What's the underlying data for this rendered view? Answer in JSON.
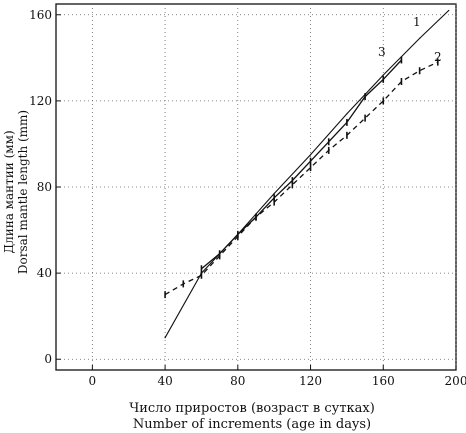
{
  "chart_data": {
    "type": "line",
    "xlabel": [
      "Число приростов (возраст в сутках)",
      "Number of increments (age in days)"
    ],
    "ylabel": [
      "Длина мантии (мм)",
      "Dorsal mantle length (mm)"
    ],
    "xlim": [
      -20,
      200
    ],
    "ylim": [
      -5,
      165
    ],
    "xticks": [
      0,
      40,
      80,
      120,
      160,
      200
    ],
    "yticks": [
      0,
      40,
      80,
      120,
      160
    ],
    "grid": true,
    "series": [
      {
        "name": "1",
        "style": "solid",
        "marker": "none",
        "x": [
          40,
          60,
          80,
          100,
          120,
          140,
          160,
          180,
          196
        ],
        "y": [
          10,
          40,
          58,
          77,
          95,
          114,
          132,
          149,
          162
        ]
      },
      {
        "name": "2",
        "style": "dashed",
        "marker": "tick",
        "x": [
          40,
          50,
          60,
          70,
          80,
          90,
          100,
          110,
          120,
          130,
          140,
          150,
          160,
          170,
          180,
          190
        ],
        "y": [
          30,
          35,
          39,
          48,
          57,
          66,
          73,
          81,
          89,
          97,
          104,
          112,
          120,
          129,
          134,
          138
        ]
      },
      {
        "name": "3",
        "style": "solid",
        "marker": "tick",
        "x": [
          60,
          70,
          80,
          90,
          100,
          110,
          120,
          130,
          140,
          150,
          160,
          170
        ],
        "y": [
          42,
          49,
          58,
          66,
          75,
          83,
          92,
          101,
          110,
          122,
          130,
          139
        ]
      }
    ]
  }
}
